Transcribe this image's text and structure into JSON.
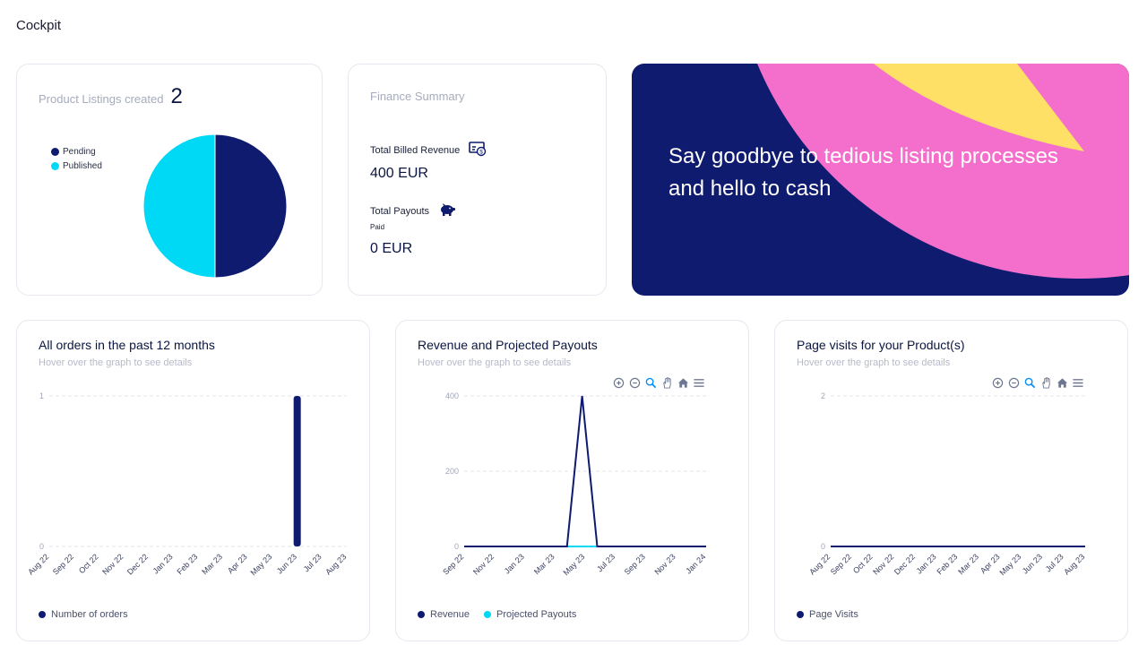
{
  "page": {
    "title": "Cockpit"
  },
  "listings": {
    "title": "Product Listings created",
    "count": "2",
    "legend": [
      {
        "label": "Pending",
        "color": "#0e1b6e"
      },
      {
        "label": "Published",
        "color": "#00d9f5"
      }
    ]
  },
  "finance": {
    "title": "Finance Summary",
    "billed_label": "Total Billed Revenue",
    "billed_icon": "money-bill-icon",
    "billed_value": "400 EUR",
    "payouts_label": "Total Payouts",
    "payouts_icon": "piggy-bank-icon",
    "payouts_status": "Paid",
    "payouts_value": "0 EUR"
  },
  "promo": {
    "text": "Say goodbye to tedious listing processes and hello to cash",
    "colors": {
      "bg": "#0e1b6e",
      "pink": "#f36fcb",
      "yellow": "#ffe066"
    }
  },
  "charts": {
    "orders": {
      "title": "All orders in the past 12 months",
      "hint": "Hover over the graph to see details",
      "legend": "Number of orders"
    },
    "revenue": {
      "title": "Revenue and Projected Payouts",
      "hint": "Hover over the graph to see details",
      "legend_revenue": "Revenue",
      "legend_payouts": "Projected Payouts"
    },
    "visits": {
      "title": "Page visits for your Product(s)",
      "hint": "Hover over the graph to see details",
      "legend": "Page Visits"
    }
  },
  "toolbar_icons": [
    "zoom-in-icon",
    "zoom-out-icon",
    "zoom-select-icon",
    "pan-hand-icon",
    "home-icon",
    "menu-icon"
  ],
  "chart_data": [
    {
      "type": "pie",
      "labels": [
        "Pending",
        "Published"
      ],
      "values": [
        1,
        1
      ],
      "colors": [
        "#0e1b6e",
        "#00d9f5"
      ]
    },
    {
      "type": "bar",
      "title": "All orders in the past 12 months",
      "categories": [
        "Aug 22",
        "Sep 22",
        "Oct 22",
        "Nov 22",
        "Dec 22",
        "Jan 23",
        "Feb 23",
        "Mar 23",
        "Apr 23",
        "May 23",
        "Jun 23",
        "Jul 23",
        "Aug 23"
      ],
      "series": [
        {
          "name": "Number of orders",
          "values": [
            0,
            0,
            0,
            0,
            0,
            0,
            0,
            0,
            0,
            0,
            1,
            0,
            0
          ]
        }
      ],
      "ylim": [
        0,
        1
      ],
      "yticks": [
        "0",
        "1"
      ],
      "color": "#0e1b6e"
    },
    {
      "type": "line",
      "title": "Revenue and Projected Payouts",
      "categories": [
        "Sep 22",
        "Nov 22",
        "Jan 23",
        "Mar 23",
        "May 23",
        "Jul 23",
        "Sep 23",
        "Nov 23",
        "Jan 24"
      ],
      "series": [
        {
          "name": "Revenue",
          "color": "#0e1b6e",
          "points": [
            [
              0,
              0
            ],
            [
              3.4,
              0
            ],
            [
              3.9,
              400
            ],
            [
              4.4,
              0
            ],
            [
              8,
              0
            ]
          ]
        },
        {
          "name": "Projected Payouts",
          "color": "#00d9f5",
          "points": [
            [
              0,
              0
            ],
            [
              8,
              0
            ]
          ]
        }
      ],
      "ylim": [
        0,
        400
      ],
      "yticks": [
        "0",
        "200",
        "400"
      ]
    },
    {
      "type": "line",
      "title": "Page visits for your Product(s)",
      "categories": [
        "Aug 22",
        "Sep 22",
        "Oct 22",
        "Nov 22",
        "Dec 22",
        "Jan 23",
        "Feb 23",
        "Mar 23",
        "Apr 23",
        "May 23",
        "Jun 23",
        "Jul 23",
        "Aug 23"
      ],
      "series": [
        {
          "name": "Page Visits",
          "color": "#0e1b6e",
          "values": [
            0,
            0,
            0,
            0,
            0,
            0,
            0,
            0,
            0,
            0,
            0,
            0,
            0
          ]
        }
      ],
      "ylim": [
        0,
        2
      ],
      "yticks": [
        "0",
        "2"
      ]
    }
  ]
}
